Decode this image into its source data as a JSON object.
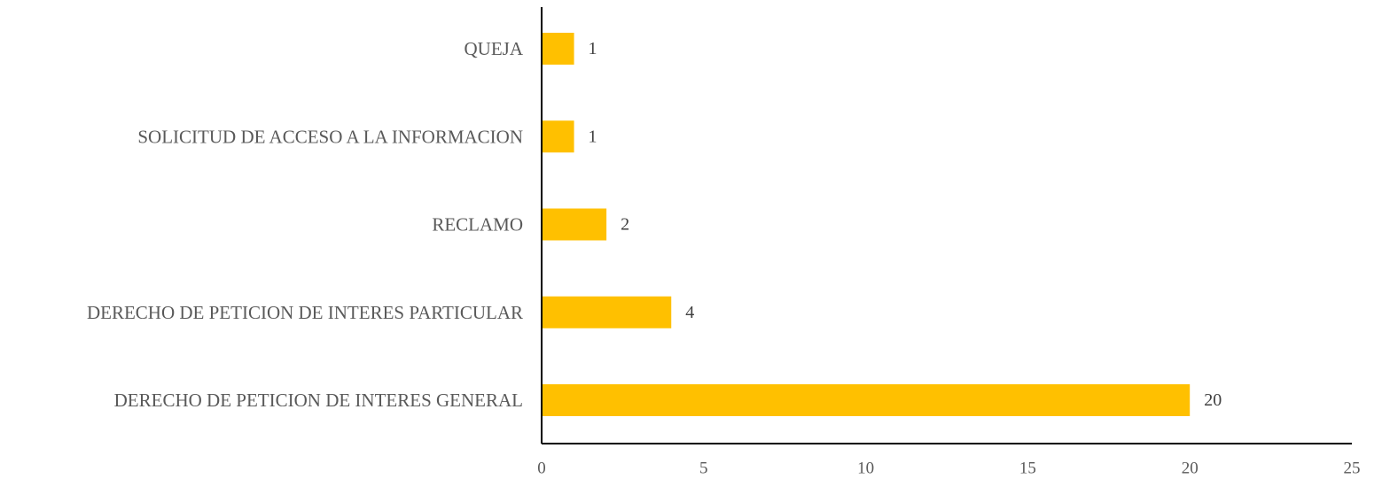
{
  "chart_data": {
    "type": "bar",
    "orientation": "horizontal",
    "title": "",
    "xlabel": "",
    "ylabel": "",
    "categories": [
      "QUEJA",
      "SOLICITUD DE ACCESO A LA INFORMACION",
      "RECLAMO",
      "DERECHO DE PETICION DE INTERES PARTICULAR",
      "DERECHO DE PETICION DE INTERES GENERAL"
    ],
    "values": [
      1,
      1,
      2,
      4,
      20
    ],
    "xlim": [
      0,
      25
    ],
    "xticks": [
      "0",
      "5",
      "10",
      "15",
      "20",
      "25"
    ],
    "data_labels": [
      "1",
      "1",
      "2",
      "4",
      "20"
    ],
    "bar_color": "#FFC000",
    "axis_color": "#000000",
    "text_color": "#595959",
    "grid": false,
    "legend": "none"
  }
}
